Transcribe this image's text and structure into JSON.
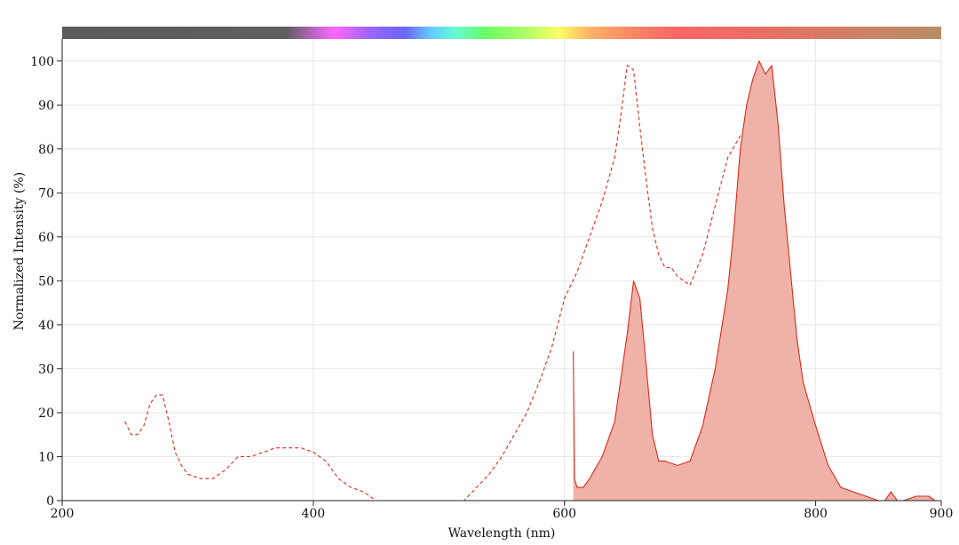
{
  "chart_data": {
    "type": "area",
    "title": "",
    "xlabel": "Wavelength (nm)",
    "ylabel": "Normalized Intensity (%)",
    "xlim": [
      200,
      900
    ],
    "ylim": [
      0,
      105
    ],
    "x_ticks": [
      200,
      400,
      600,
      800,
      900
    ],
    "y_ticks": [
      0,
      10,
      20,
      30,
      40,
      50,
      60,
      70,
      80,
      90,
      100
    ],
    "grid": true,
    "legend": "none",
    "spectrum_bar": true,
    "colors": {
      "line": "#dd2a18",
      "fill": "#eeb2a8",
      "grid": "#e6e6e6",
      "axis": "#222222",
      "spectrum_uv": "#5b5b5b"
    },
    "series": [
      {
        "style": "dashed",
        "fill": false,
        "x": [
          250,
          255,
          260,
          265,
          270,
          275,
          280,
          285,
          290,
          295,
          300,
          310,
          320,
          330,
          340,
          350,
          360,
          370,
          380,
          390,
          400,
          410,
          420,
          430,
          440,
          450,
          460,
          480,
          500,
          520,
          530,
          540,
          550,
          560,
          570,
          580,
          590,
          600,
          610,
          620,
          630,
          640,
          645,
          650,
          655,
          660,
          665,
          670,
          675,
          680,
          685,
          690,
          700,
          710,
          720,
          730,
          740,
          745,
          750,
          755,
          760,
          765,
          770,
          775,
          780,
          785,
          790,
          795,
          800,
          805,
          810
        ],
        "y": [
          18,
          15,
          15,
          17,
          22,
          24,
          24,
          18,
          11,
          8,
          6,
          5,
          5,
          7,
          10,
          10,
          11,
          12,
          12,
          12,
          11,
          9,
          5,
          3,
          2,
          0,
          0,
          0,
          0,
          0,
          3,
          6,
          10,
          15,
          20,
          27,
          35,
          46,
          52,
          60,
          68,
          78,
          88,
          99,
          98,
          85,
          73,
          62,
          56,
          53,
          53,
          51,
          49,
          56,
          67,
          78,
          83,
          81,
          75,
          62,
          47,
          37,
          27,
          22,
          18,
          12,
          8,
          5,
          3,
          1,
          0
        ]
      },
      {
        "style": "solid",
        "fill": true,
        "x": [
          607,
          608,
          610,
          615,
          620,
          630,
          640,
          650,
          655,
          660,
          665,
          670,
          675,
          680,
          690,
          700,
          710,
          720,
          730,
          735,
          740,
          745,
          750,
          755,
          760,
          765,
          770,
          775,
          780,
          785,
          790,
          795,
          800,
          810,
          820,
          830,
          840,
          850,
          855,
          860,
          865,
          870,
          880,
          890,
          895
        ],
        "y": [
          34,
          5,
          3,
          3,
          5,
          10,
          18,
          38,
          50,
          46,
          31,
          15,
          9,
          9,
          8,
          9,
          17,
          30,
          48,
          62,
          80,
          90,
          96,
          100,
          97,
          99,
          86,
          67,
          52,
          37,
          27,
          22,
          17,
          8,
          3,
          2,
          1,
          0,
          0,
          2,
          0,
          0,
          1,
          1,
          0
        ]
      }
    ]
  }
}
